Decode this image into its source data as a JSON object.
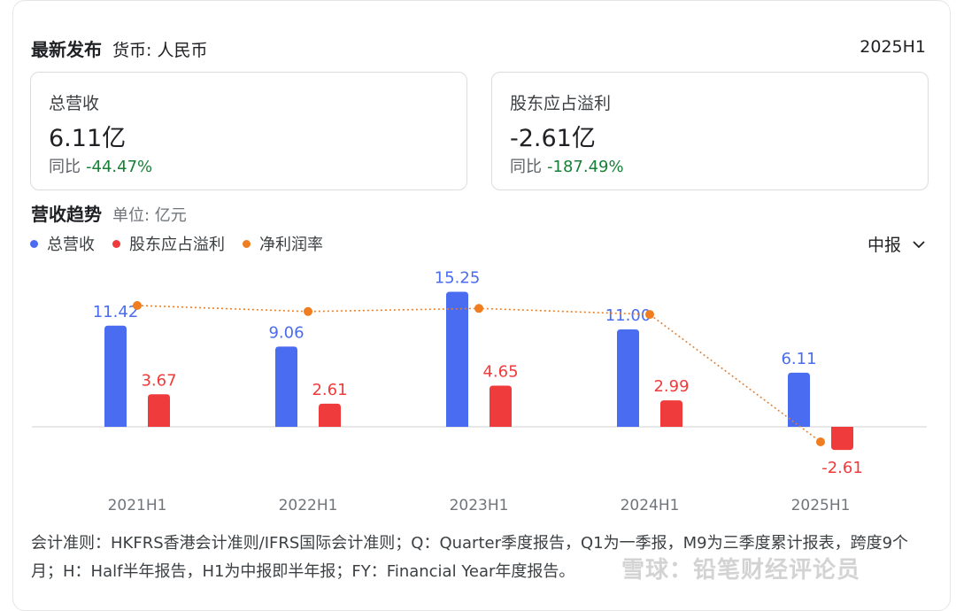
{
  "header": {
    "title": "最新发布",
    "currency": "货币: 人民币",
    "period": "2025H1"
  },
  "stats": [
    {
      "label": "总营收",
      "value": "6.11亿",
      "yoy_label": "同比",
      "yoy_value": "-44.47%"
    },
    {
      "label": "股东应占溢利",
      "value": "-2.61亿",
      "yoy_label": "同比",
      "yoy_value": "-187.49%"
    }
  ],
  "section": {
    "title": "营收趋势",
    "unit": "单位: 亿元"
  },
  "period_selector": {
    "label": "中报"
  },
  "colors": {
    "revenue": "#4a6cf0",
    "profit": "#ef3b3b",
    "margin": "#f07d1f",
    "positive_pct": "#188038"
  },
  "chart_data": {
    "type": "bar",
    "categories": [
      "2021H1",
      "2022H1",
      "2023H1",
      "2024H1",
      "2025H1"
    ],
    "series": [
      {
        "name": "总营收",
        "values": [
          11.42,
          9.06,
          15.25,
          11.0,
          6.11
        ],
        "labels": [
          "11.42",
          "9.06",
          "15.25",
          "11.00",
          "6.11"
        ],
        "color": "#4a6cf0"
      },
      {
        "name": "股东应占溢利",
        "values": [
          3.67,
          2.61,
          4.65,
          2.99,
          -2.61
        ],
        "labels": [
          "3.67",
          "2.61",
          "4.65",
          "2.99",
          "-2.61"
        ],
        "color": "#ef3b3b"
      },
      {
        "name": "净利润率",
        "type": "line",
        "values": [
          32.1,
          28.8,
          30.5,
          27.2,
          -42.7
        ],
        "color": "#f07d1f"
      }
    ],
    "ylim": [
      -3.5,
      17.0
    ],
    "grid": false,
    "legend": "top-left"
  },
  "footnote": "会计准则：HKFRS香港会计准则/IFRS国际会计准则；Q：Quarter季度报告，Q1为一季报，M9为三季度累计报表，跨度9个月；H：Half半年报告，H1为中报即半年报；FY：Financial Year年度报告。",
  "watermark": "雪球：铅笔财经评论员"
}
